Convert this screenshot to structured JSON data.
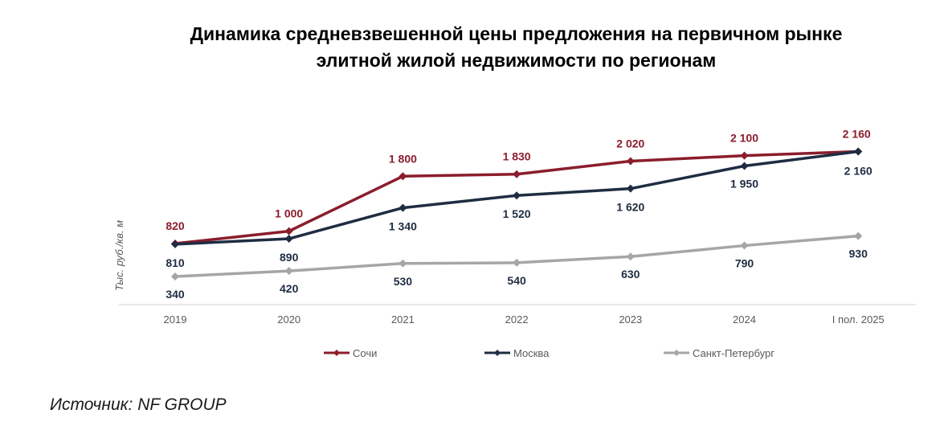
{
  "chart_data": {
    "type": "line",
    "title_lines": [
      "Динамика средневзвешенной цены предложения на первичном рынке",
      "элитной жилой недвижимости по регионам"
    ],
    "ylabel": "Тыс. руб./кв. м",
    "categories": [
      "2019",
      "2020",
      "2021",
      "2022",
      "2023",
      "2024",
      "I пол. 2025"
    ],
    "series": [
      {
        "name": "Сочи",
        "color": "#8b1d2c",
        "values": [
          820,
          1000,
          1800,
          1830,
          2020,
          2100,
          2160
        ],
        "labels": [
          "820",
          "1 000",
          "1 800",
          "1 830",
          "2 020",
          "2 100",
          "2 160"
        ]
      },
      {
        "name": "Москва",
        "color": "#1f2d42",
        "values": [
          810,
          890,
          1340,
          1520,
          1620,
          1950,
          2160
        ],
        "labels": [
          "810",
          "890",
          "1 340",
          "1 520",
          "1 620",
          "1 950",
          "2 160"
        ]
      },
      {
        "name": "Санкт-Петербург",
        "color": "#a6a6a6",
        "values": [
          340,
          420,
          530,
          540,
          630,
          790,
          930
        ],
        "labels": [
          "340",
          "420",
          "530",
          "540",
          "630",
          "790",
          "930"
        ]
      }
    ],
    "legend_position": "bottom",
    "grid": false
  },
  "source": "Источник: NF GROUP"
}
